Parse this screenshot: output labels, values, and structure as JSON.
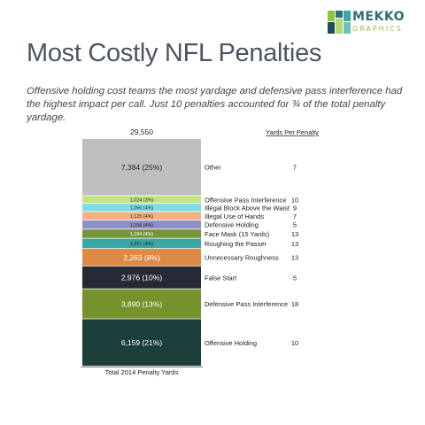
{
  "header": {
    "logo_brand": "MEKKO",
    "logo_sub": "GRAPHICS",
    "title": "Most Costly NFL Penalties",
    "subtitle": "Offensive holding cost teams the most yardage and defensive pass interference had the highest impact per call.  Just 10 penalties accounted for ¾ of the total penalty yardage."
  },
  "colors": {
    "logo_squares": [
      "#8dc63f",
      "#2f6f73",
      "#3aa9a5",
      "#b7d66f",
      "#1f4e5a",
      "#6cc4c0"
    ]
  },
  "chart_data": {
    "type": "bar",
    "stacked": true,
    "total_label": "29,550",
    "xlabel": "Total 2014 Penalty Yards",
    "right_column_header": "Yards Per Penalty",
    "segments": [
      {
        "name": "Other",
        "value": 7384,
        "label": "7,384 (25%)",
        "yards_per_penalty": "7",
        "color": "#bebebe",
        "text_color": "#222222"
      },
      {
        "name": "Offensive Pass Interference",
        "value": 1024,
        "label": "1,024 (3%)",
        "yards_per_penalty": "10",
        "color": "#c5e384",
        "text_color": "#222222"
      },
      {
        "name": "Illegal Block Above the Waist",
        "value": 1056,
        "label": "1,056 (4%)",
        "yards_per_penalty": "9",
        "color": "#7ddde6",
        "text_color": "#222222"
      },
      {
        "name": "Illegal Use of Hands",
        "value": 1125,
        "label": "1,125 (4%)",
        "yards_per_penalty": "7",
        "color": "#f4b183",
        "text_color": "#222222"
      },
      {
        "name": "Defensive Holding",
        "value": 1158,
        "label": "1,158 (4%)",
        "yards_per_penalty": "5",
        "color": "#8e8ec8",
        "text_color": "#222222"
      },
      {
        "name": "Face Mask (15 Yards)",
        "value": 1194,
        "label": "1,194 (4%)",
        "yards_per_penalty": "13",
        "color": "#77933c",
        "text_color": "#ffffff"
      },
      {
        "name": "Roughing the Passer",
        "value": 1321,
        "label": "1,321 (4%)",
        "yards_per_penalty": "13",
        "color": "#3aa6a3",
        "text_color": "#222222"
      },
      {
        "name": "Unnecessary Roughness",
        "value": 2263,
        "label": "2,263 (8%)",
        "yards_per_penalty": "13",
        "color": "#de8a47",
        "text_color": "#ffffff"
      },
      {
        "name": "False Start",
        "value": 2976,
        "label": "2,976 (10%)",
        "yards_per_penalty": "5",
        "color": "#262a35",
        "text_color": "#ffffff"
      },
      {
        "name": "Defensive Pass Interference",
        "value": 3890,
        "label": "3,890 (13%)",
        "yards_per_penalty": "18",
        "color": "#76922c",
        "text_color": "#ffffff"
      },
      {
        "name": "Offensive Holding",
        "value": 6159,
        "label": "6,159 (21%)",
        "yards_per_penalty": "10",
        "color": "#1d3f3b",
        "text_color": "#ffffff"
      }
    ]
  }
}
